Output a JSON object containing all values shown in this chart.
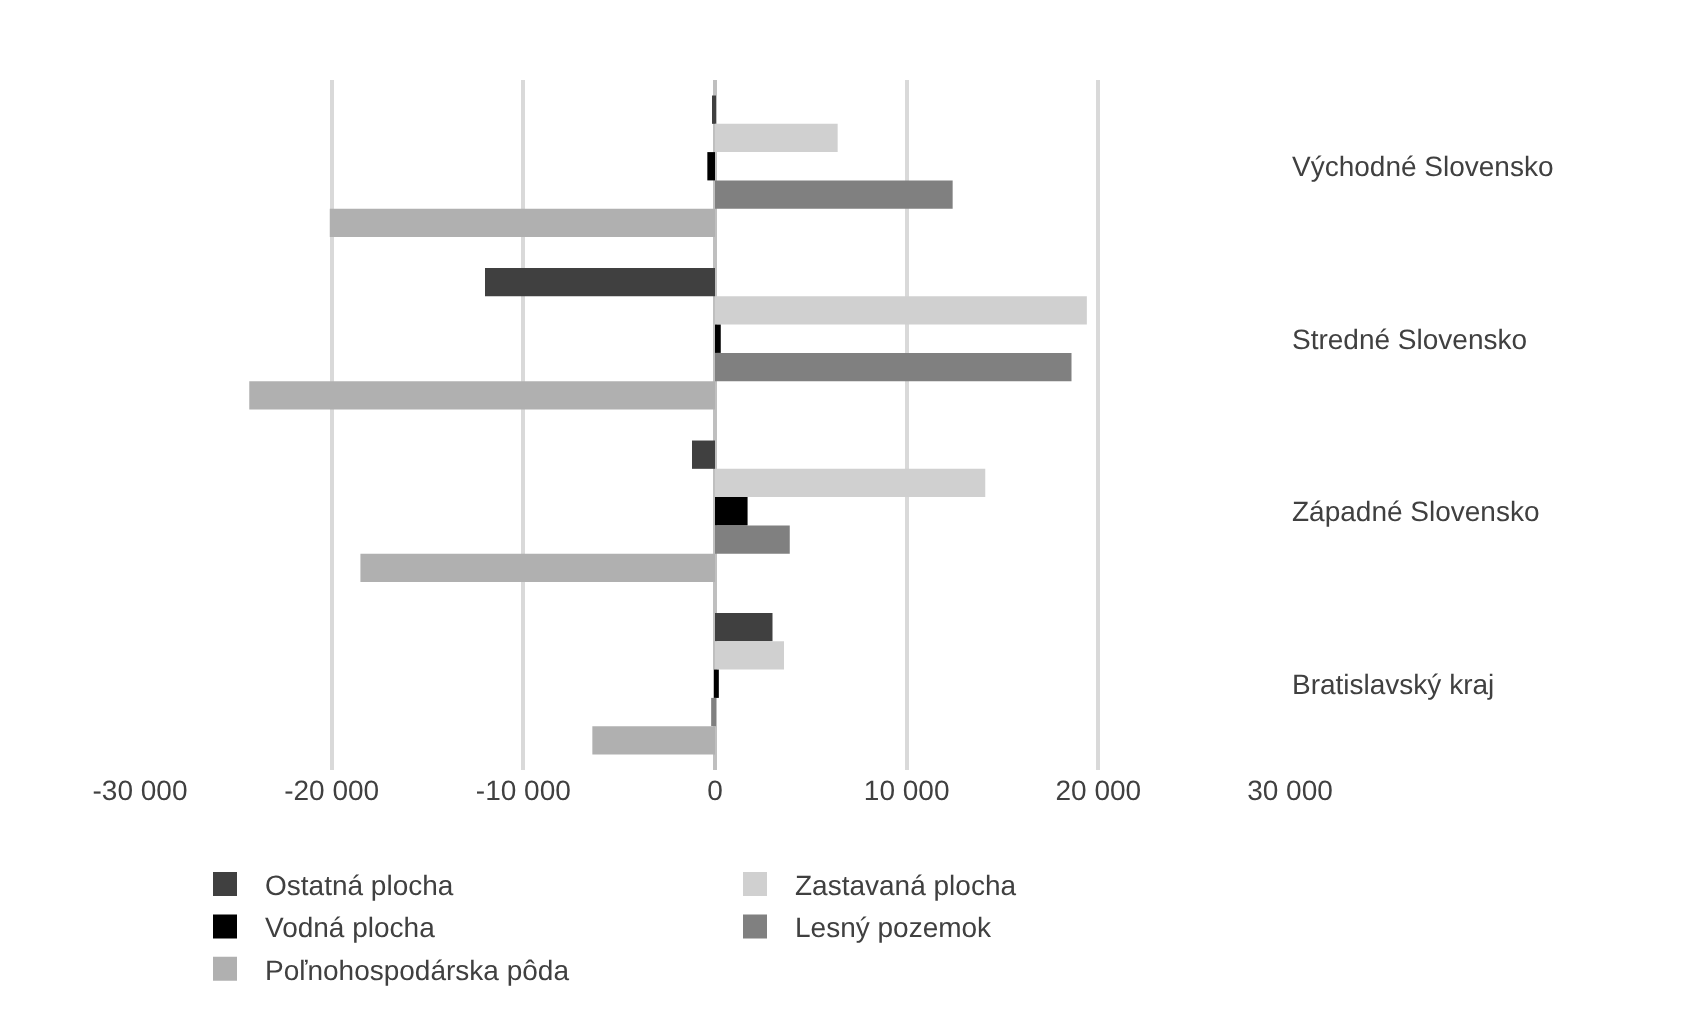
{
  "chart_data": {
    "type": "bar",
    "orientation": "horizontal",
    "categories": [
      "Východné Slovensko",
      "Stredné Slovensko",
      "Západné Slovensko",
      "Bratislavský kraj"
    ],
    "series": [
      {
        "name": "Ostatná plocha",
        "color": "#404040",
        "values": [
          -100,
          -12000,
          -1200,
          3000
        ]
      },
      {
        "name": "Zastavaná plocha",
        "color": "#d0d0d0",
        "values": [
          6400,
          19400,
          14100,
          3600
        ]
      },
      {
        "name": "Vodná plocha",
        "color": "#000000",
        "values": [
          -400,
          300,
          1700,
          200
        ]
      },
      {
        "name": "Lesný pozemok",
        "color": "#808080",
        "values": [
          12400,
          18600,
          3900,
          -200
        ]
      },
      {
        "name": "Poľnohospodárska pôda",
        "color": "#b0b0b0",
        "values": [
          -20100,
          -24300,
          -18500,
          -6400
        ]
      }
    ],
    "xlim": [
      -30000,
      30000
    ],
    "xticks": [
      {
        "value": -30000,
        "label": "-30 000"
      },
      {
        "value": -20000,
        "label": "-20 000"
      },
      {
        "value": -10000,
        "label": "-10 000"
      },
      0,
      {
        "value": 10000,
        "label": "10 000"
      },
      {
        "value": 20000,
        "label": "20 000"
      },
      {
        "value": 30000,
        "label": "30 000"
      }
    ],
    "grid": "x",
    "legend": "bottom"
  }
}
